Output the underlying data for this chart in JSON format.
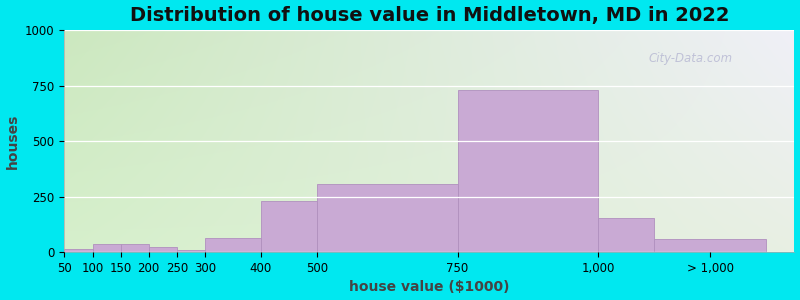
{
  "title": "Distribution of house value in Middletown, MD in 2022",
  "xlabel": "house value ($1000)",
  "ylabel": "houses",
  "bar_color": "#c9aad4",
  "bar_edge_color": "#b090be",
  "background_outer": "#00e8f0",
  "ylim": [
    0,
    1000
  ],
  "yticks": [
    0,
    250,
    500,
    750,
    1000
  ],
  "xtick_labels": [
    "50",
    "100",
    "150",
    "200",
    "250",
    "300",
    "400",
    "500",
    "750",
    "1,000",
    "> 1,000"
  ],
  "xtick_positions": [
    50,
    100,
    150,
    200,
    250,
    300,
    400,
    500,
    750,
    1000,
    1200
  ],
  "xlim": [
    50,
    1350
  ],
  "bar_lefts": [
    50,
    100,
    150,
    200,
    250,
    300,
    400,
    500,
    750,
    1000,
    1100
  ],
  "bar_widths": [
    50,
    50,
    50,
    50,
    50,
    100,
    100,
    250,
    250,
    100,
    200
  ],
  "bar_heights": [
    15,
    35,
    35,
    25,
    10,
    65,
    230,
    305,
    730,
    155,
    60
  ],
  "title_fontsize": 14,
  "axis_label_fontsize": 10,
  "tick_fontsize": 8.5,
  "watermark_text": "City-Data.com"
}
